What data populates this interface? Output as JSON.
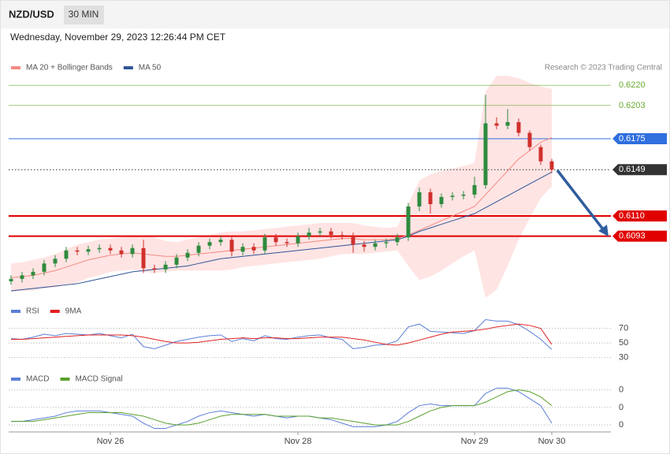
{
  "header": {
    "symbol": "NZD/USD",
    "interval": "30 MIN",
    "timestamp": "Wednesday, November 29, 2023 12:26:44 PM CET"
  },
  "chart_data": [
    {
      "type": "candlestick",
      "note": "Research © 2023 Trading Central",
      "categories": [
        null,
        null,
        null,
        null,
        null,
        null,
        null,
        null,
        null,
        "Nov 26",
        null,
        null,
        null,
        null,
        null,
        null,
        null,
        null,
        null,
        null,
        null,
        null,
        null,
        null,
        null,
        null,
        "Nov 28",
        null,
        null,
        null,
        null,
        null,
        null,
        null,
        null,
        null,
        null,
        null,
        null,
        null,
        null,
        null,
        "Nov 29",
        null,
        null,
        null,
        null,
        null,
        null,
        "Nov 30"
      ],
      "open": [
        0.6055,
        0.6057,
        0.606,
        0.6063,
        0.607,
        0.6074,
        0.6081,
        0.608,
        0.6082,
        0.6083,
        0.6081,
        0.6078,
        0.6083,
        0.6066,
        0.6065,
        0.6069,
        0.6075,
        0.6079,
        0.6085,
        0.6088,
        0.609,
        0.608,
        0.6084,
        0.6081,
        0.6092,
        0.6088,
        0.6087,
        0.6093,
        0.6096,
        0.6097,
        0.6094,
        0.6093,
        0.6086,
        0.6084,
        0.6087,
        0.6088,
        0.6092,
        0.6118,
        0.613,
        0.612,
        0.6126,
        0.6127,
        0.6128,
        0.6136,
        0.6188,
        0.6186,
        0.6189,
        0.618,
        0.6168,
        0.6156
      ],
      "high": [
        0.606,
        0.6063,
        0.6066,
        0.6073,
        0.6077,
        0.6084,
        0.6084,
        0.6085,
        0.6086,
        0.6086,
        0.6084,
        0.6086,
        0.609,
        0.6069,
        0.6072,
        0.6078,
        0.6082,
        0.6088,
        0.6091,
        0.6093,
        0.6093,
        0.6087,
        0.6087,
        0.6095,
        0.6095,
        0.6091,
        0.6096,
        0.61,
        0.61,
        0.61,
        0.6097,
        0.6096,
        0.6089,
        0.609,
        0.6091,
        0.6095,
        0.6121,
        0.6134,
        0.6133,
        0.6129,
        0.613,
        0.6131,
        0.6143,
        0.6212,
        0.6193,
        0.62,
        0.6192,
        0.6182,
        0.617,
        0.6158
      ],
      "low": [
        0.6052,
        0.6054,
        0.6057,
        0.606,
        0.6067,
        0.6071,
        0.6077,
        0.6077,
        0.6079,
        0.6078,
        0.6075,
        0.6075,
        0.6062,
        0.6062,
        0.6062,
        0.6066,
        0.6072,
        0.6076,
        0.6082,
        0.6085,
        0.6076,
        0.6077,
        0.6078,
        0.6078,
        0.6085,
        0.6084,
        0.6084,
        0.609,
        0.6093,
        0.6091,
        0.609,
        0.6079,
        0.608,
        0.6081,
        0.6083,
        0.6085,
        0.6089,
        0.6114,
        0.6112,
        0.6117,
        0.6123,
        0.6124,
        0.6125,
        0.6133,
        0.6183,
        0.6183,
        0.6177,
        0.6165,
        0.6153,
        0.6146
      ],
      "close": [
        0.6057,
        0.606,
        0.6063,
        0.607,
        0.6074,
        0.6081,
        0.608,
        0.6082,
        0.6083,
        0.6081,
        0.6078,
        0.6083,
        0.6066,
        0.6065,
        0.6069,
        0.6075,
        0.6079,
        0.6085,
        0.6088,
        0.609,
        0.608,
        0.6084,
        0.6081,
        0.6092,
        0.6088,
        0.6087,
        0.6093,
        0.6096,
        0.6097,
        0.6094,
        0.6093,
        0.6086,
        0.6084,
        0.6087,
        0.6088,
        0.6092,
        0.6118,
        0.613,
        0.612,
        0.6126,
        0.6127,
        0.6128,
        0.6136,
        0.6188,
        0.6186,
        0.6189,
        0.618,
        0.6168,
        0.6156,
        0.6149
      ],
      "up_color": "#2e8b3e",
      "down_color": "#d0312d",
      "series": [
        {
          "name": "MA 20 + Bollinger Bands",
          "color": "#f28b82",
          "values": [
            0.6058,
            0.6059,
            0.606,
            0.6062,
            0.6064,
            0.6067,
            0.607,
            0.6073,
            0.6075,
            0.6077,
            0.6078,
            0.6079,
            0.6078,
            0.6077,
            0.6076,
            0.6076,
            0.6077,
            0.6078,
            0.6079,
            0.608,
            0.6081,
            0.6082,
            0.6083,
            0.6084,
            0.6085,
            0.6086,
            0.6087,
            0.6088,
            0.6089,
            0.609,
            0.6091,
            0.6091,
            0.609,
            0.609,
            0.609,
            0.6091,
            0.6094,
            0.6098,
            0.6102,
            0.6106,
            0.611,
            0.6114,
            0.6118,
            0.6128,
            0.6138,
            0.6148,
            0.6158,
            0.6165,
            0.6172,
            0.6176
          ]
        },
        {
          "name": "MA 50",
          "color": "#2f5597",
          "values": [
            0.6047,
            0.6048,
            0.6049,
            0.605,
            0.6051,
            0.6052,
            0.6053,
            0.6055,
            0.6057,
            0.6059,
            0.6061,
            0.6063,
            0.6064,
            0.6065,
            0.6066,
            0.6067,
            0.6068,
            0.607,
            0.6072,
            0.6074,
            0.6075,
            0.6076,
            0.6077,
            0.6078,
            0.6079,
            0.608,
            0.6081,
            0.6082,
            0.6083,
            0.6084,
            0.6085,
            0.6086,
            0.6087,
            0.6088,
            0.6089,
            0.609,
            0.6093,
            0.6097,
            0.61,
            0.6103,
            0.6106,
            0.6109,
            0.6112,
            0.6117,
            0.6122,
            0.6127,
            0.6132,
            0.6137,
            0.6142,
            0.6147
          ]
        }
      ],
      "bands": {
        "color": "#ffd9d9",
        "upper": [
          0.607,
          0.6071,
          0.6073,
          0.6075,
          0.6078,
          0.6082,
          0.6086,
          0.6088,
          0.609,
          0.6091,
          0.6092,
          0.6093,
          0.6093,
          0.6092,
          0.6089,
          0.6088,
          0.609,
          0.6092,
          0.6094,
          0.6096,
          0.6097,
          0.6097,
          0.6098,
          0.6099,
          0.61,
          0.6101,
          0.6102,
          0.6103,
          0.6104,
          0.6104,
          0.6104,
          0.6104,
          0.6102,
          0.6101,
          0.61,
          0.6101,
          0.612,
          0.614,
          0.6145,
          0.6148,
          0.615,
          0.6152,
          0.6155,
          0.6215,
          0.6228,
          0.6228,
          0.6226,
          0.6222,
          0.6219,
          0.6217
        ],
        "lower": [
          0.6046,
          0.6047,
          0.6047,
          0.6049,
          0.605,
          0.6052,
          0.6054,
          0.6058,
          0.606,
          0.6063,
          0.6064,
          0.6065,
          0.6063,
          0.6062,
          0.6063,
          0.6064,
          0.6064,
          0.6064,
          0.6064,
          0.6064,
          0.6065,
          0.6067,
          0.6068,
          0.6069,
          0.607,
          0.6071,
          0.6072,
          0.6073,
          0.6074,
          0.6076,
          0.6078,
          0.6078,
          0.6078,
          0.6079,
          0.608,
          0.6081,
          0.6068,
          0.6056,
          0.6059,
          0.6064,
          0.607,
          0.6076,
          0.6081,
          0.6041,
          0.6048,
          0.6068,
          0.609,
          0.6108,
          0.6125,
          0.6135
        ]
      },
      "ylim": [
        0.6043,
        0.6252
      ],
      "levels": [
        {
          "value": 0.622,
          "label": "0.6220",
          "color": "#6aab2e",
          "boxed": false,
          "line_width": 0.6
        },
        {
          "value": 0.6203,
          "label": "0.6203",
          "color": "#6aab2e",
          "boxed": false,
          "line_width": 0.6
        },
        {
          "value": 0.6175,
          "label": "0.6175",
          "color": "#2f6fde",
          "boxed": true,
          "line_width": 1
        },
        {
          "value": 0.6149,
          "label": "0.6149",
          "color": "#333333",
          "boxed": true,
          "line_width": 1,
          "dotted": true
        },
        {
          "value": 0.611,
          "label": "0.6110",
          "color": "#e00000",
          "boxed": true,
          "line_width": 2
        },
        {
          "value": 0.6093,
          "label": "0.6093",
          "color": "#e00000",
          "boxed": true,
          "line_width": 2
        }
      ]
    },
    {
      "type": "line",
      "series": [
        {
          "name": "RSI",
          "color": "#5b7fd6",
          "values": [
            56,
            55,
            58,
            62,
            60,
            63,
            62,
            61,
            63,
            60,
            57,
            62,
            45,
            42,
            47,
            52,
            55,
            58,
            60,
            61,
            52,
            56,
            53,
            60,
            56,
            55,
            58,
            60,
            61,
            57,
            55,
            42,
            44,
            47,
            48,
            53,
            72,
            76,
            66,
            65,
            64,
            63,
            67,
            82,
            80,
            80,
            75,
            66,
            55,
            41
          ]
        },
        {
          "name": "9MA",
          "color": "#e02020",
          "values": [
            55,
            55,
            56,
            57,
            58,
            59,
            60,
            61,
            61,
            61,
            61,
            60,
            58,
            55,
            52,
            50,
            50,
            51,
            53,
            55,
            56,
            57,
            56,
            57,
            57,
            56,
            56,
            57,
            58,
            58,
            58,
            56,
            54,
            51,
            48,
            47,
            50,
            54,
            58,
            62,
            65,
            66,
            67,
            69,
            72,
            74,
            76,
            74,
            70,
            48
          ]
        }
      ],
      "ylim": [
        22,
        88
      ],
      "yticks": [
        70,
        50,
        30
      ]
    },
    {
      "type": "line",
      "series": [
        {
          "name": "MACD",
          "color": "#5b7fd6",
          "values": [
            -0.0008,
            -0.0008,
            -0.0007,
            -0.0006,
            -0.0005,
            -0.0003,
            -0.0002,
            -0.0002,
            -0.0002,
            -0.0003,
            -0.0004,
            -0.0005,
            -0.0009,
            -0.0012,
            -0.0012,
            -0.001,
            -0.0008,
            -0.0005,
            -0.0003,
            -0.0002,
            -0.0003,
            -0.0004,
            -0.0005,
            -0.0004,
            -0.0005,
            -0.0006,
            -0.0005,
            -0.0005,
            -0.0006,
            -0.0007,
            -0.0009,
            -0.0011,
            -0.0011,
            -0.0011,
            -0.001,
            -0.0008,
            -0.0003,
            0.0001,
            0.0002,
            0.0001,
            0.0001,
            0.0001,
            0.0001,
            0.0008,
            0.0011,
            0.0011,
            0.0009,
            0.0005,
            0.0001,
            -0.0009
          ]
        },
        {
          "name": "MACD Signal",
          "color": "#5aa02c",
          "values": [
            -0.0008,
            -0.0008,
            -0.0008,
            -0.0007,
            -0.0006,
            -0.0005,
            -0.0004,
            -0.0003,
            -0.0003,
            -0.0003,
            -0.0003,
            -0.0004,
            -0.0005,
            -0.0007,
            -0.0009,
            -0.001,
            -0.001,
            -0.0009,
            -0.0007,
            -0.0005,
            -0.0004,
            -0.0004,
            -0.0004,
            -0.0004,
            -0.0005,
            -0.0005,
            -0.0005,
            -0.0005,
            -0.0006,
            -0.0006,
            -0.0007,
            -0.0008,
            -0.0009,
            -0.001,
            -0.001,
            -0.001,
            -0.0008,
            -0.0005,
            -0.0002,
            0,
            0.0001,
            0.0001,
            0.0001,
            0.0003,
            0.0006,
            0.0009,
            0.001,
            0.0009,
            0.0006,
            0.0001
          ]
        }
      ],
      "ylim": [
        -0.0014,
        0.0013
      ],
      "yticks": [
        {
          "value": 0.001,
          "label": "0"
        },
        {
          "value": 0,
          "label": "0"
        },
        {
          "value": -0.001,
          "label": "0"
        }
      ]
    }
  ]
}
